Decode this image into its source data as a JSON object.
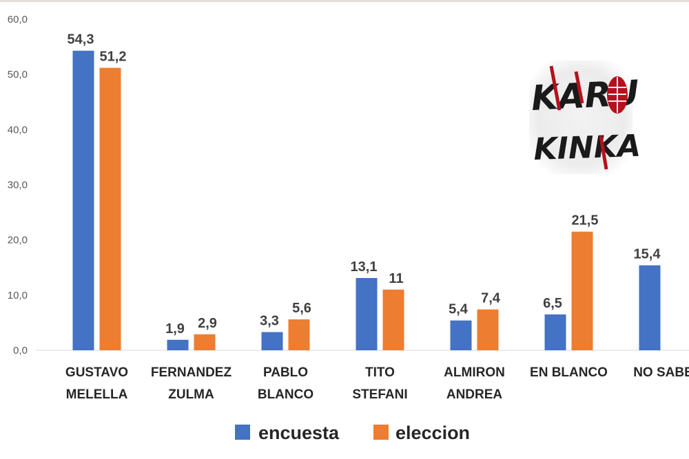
{
  "chart_data": {
    "type": "bar",
    "categories": [
      [
        "GUSTAVO",
        "MELELLA"
      ],
      [
        "FERNANDEZ",
        "ZULMA"
      ],
      [
        "PABLO",
        "BLANCO"
      ],
      [
        "TITO",
        "STEFANI"
      ],
      [
        "ALMIRON",
        "ANDREA"
      ],
      [
        "EN BLANCO"
      ],
      [
        "NO SABE"
      ]
    ],
    "series": [
      {
        "name": "encuesta",
        "color": "#4472c4",
        "values": [
          54.3,
          1.9,
          3.3,
          13.1,
          5.4,
          6.5,
          15.4
        ],
        "labels": [
          "54,3",
          "1,9",
          "3,3",
          "13,1",
          "5,4",
          "6,5",
          "15,4"
        ]
      },
      {
        "name": "eleccion",
        "color": "#ed7d31",
        "values": [
          51.2,
          2.9,
          5.6,
          11,
          7.4,
          21.5,
          null
        ],
        "labels": [
          "51,2",
          "2,9",
          "5,6",
          "11",
          "7,4",
          "21,5",
          null
        ]
      }
    ],
    "yticks": [
      "0,0",
      "10,0",
      "20,0",
      "30,0",
      "40,0",
      "50,0",
      "60,0"
    ],
    "ylim": [
      0,
      60
    ],
    "grid": false,
    "legend_position": "bottom",
    "title": "",
    "xlabel": "",
    "ylabel": ""
  },
  "logo": {
    "line1": "KARU",
    "line2": "KINKA",
    "icon": "footprint-icon"
  }
}
